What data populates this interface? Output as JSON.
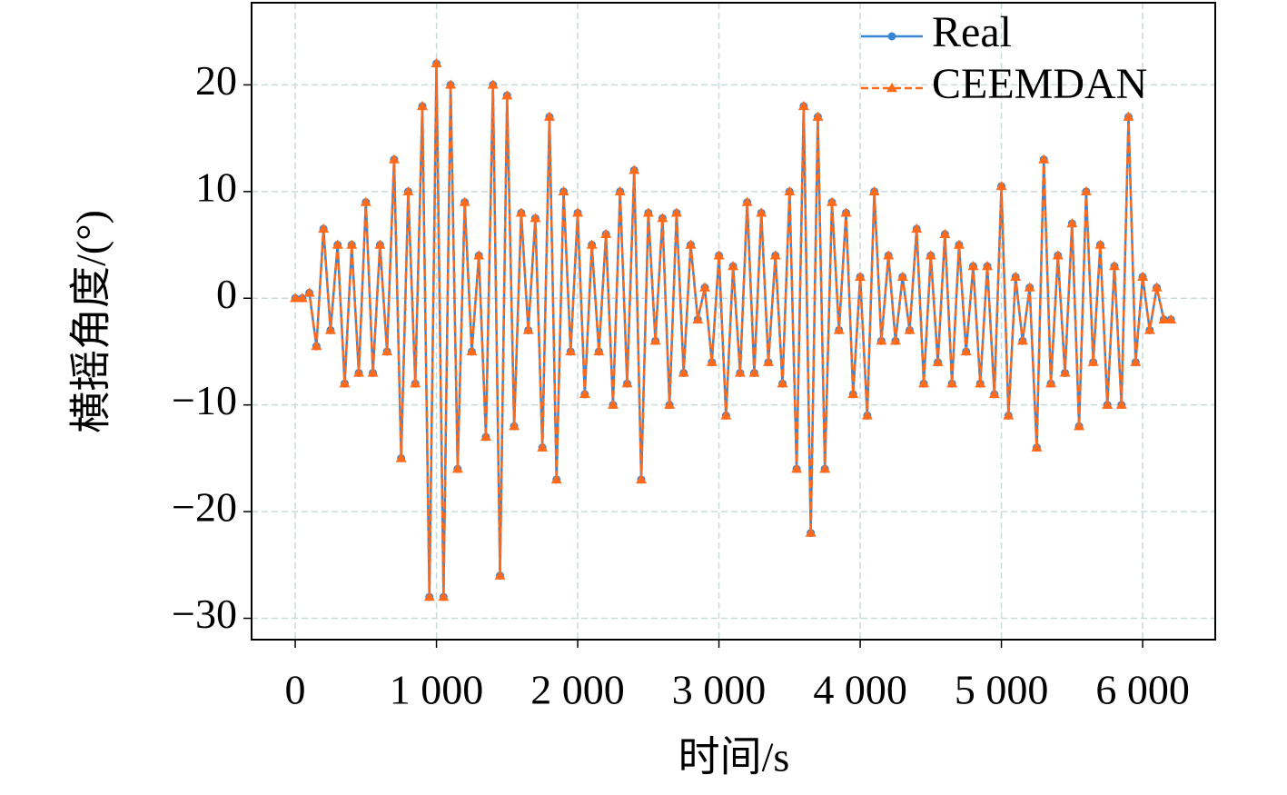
{
  "chart_data": {
    "type": "line",
    "xlabel": "时间/s",
    "ylabel": "横摇角度/(°)",
    "x": [
      0,
      50,
      100,
      150,
      200,
      250,
      300,
      350,
      400,
      450,
      500,
      550,
      600,
      650,
      700,
      750,
      800,
      850,
      900,
      950,
      1000,
      1050,
      1100,
      1150,
      1200,
      1250,
      1300,
      1350,
      1400,
      1450,
      1500,
      1550,
      1600,
      1650,
      1700,
      1750,
      1800,
      1850,
      1900,
      1950,
      2000,
      2050,
      2100,
      2150,
      2200,
      2250,
      2300,
      2350,
      2400,
      2450,
      2500,
      2550,
      2600,
      2650,
      2700,
      2750,
      2800,
      2850,
      2900,
      2950,
      3000,
      3050,
      3100,
      3150,
      3200,
      3250,
      3300,
      3350,
      3400,
      3450,
      3500,
      3550,
      3600,
      3650,
      3700,
      3750,
      3800,
      3850,
      3900,
      3950,
      4000,
      4050,
      4100,
      4150,
      4200,
      4250,
      4300,
      4350,
      4400,
      4450,
      4500,
      4550,
      4600,
      4650,
      4700,
      4750,
      4800,
      4850,
      4900,
      4950,
      5000,
      5050,
      5100,
      5150,
      5200,
      5250,
      5300,
      5350,
      5400,
      5450,
      5500,
      5550,
      5600,
      5650,
      5700,
      5750,
      5800,
      5850,
      5900,
      5950,
      6000,
      6050,
      6100,
      6150,
      6200
    ],
    "series": [
      {
        "name": "Real",
        "color": "#3a86d4",
        "marker": "circle",
        "dash": false,
        "values": [
          0,
          0,
          0.5,
          -4.5,
          6.5,
          -3,
          5,
          -8,
          5,
          -7,
          9,
          -7,
          5,
          -5,
          13,
          -15,
          10,
          -8,
          18,
          -28,
          22,
          -28,
          20,
          -16,
          9,
          -5,
          4,
          -13,
          20,
          -26,
          19,
          -12,
          8,
          -3,
          7.5,
          -14,
          17,
          -17,
          10,
          -5,
          8,
          -9,
          5,
          -5,
          6,
          -10,
          10,
          -8,
          12,
          -17,
          8,
          -4,
          7.5,
          -10,
          8,
          -7,
          5,
          -2,
          1,
          -6,
          4,
          -11,
          3,
          -7,
          9,
          -7,
          8,
          -6,
          4,
          -8,
          10,
          -16,
          18,
          -22,
          17,
          -16,
          9,
          -3,
          8,
          -9,
          2,
          -11,
          10,
          -4,
          4,
          -4,
          2,
          -3,
          6.5,
          -8,
          4,
          -6,
          6,
          -8,
          5,
          -5,
          3,
          -8,
          3,
          -9,
          10.5,
          -11,
          2,
          -4,
          1,
          -14,
          13,
          -8,
          4,
          -7,
          7,
          -12,
          10,
          -6,
          5,
          -10,
          3,
          -10,
          17,
          -6,
          2,
          -3,
          1,
          -2,
          -2
        ]
      },
      {
        "name": "CEEMDAN",
        "color": "#ff6a1a",
        "marker": "triangle",
        "dash": true,
        "values": [
          0,
          0,
          0.5,
          -4.5,
          6.5,
          -3,
          5,
          -8,
          5,
          -7,
          9,
          -7,
          5,
          -5,
          13,
          -15,
          10,
          -8,
          18,
          -28,
          22,
          -28,
          20,
          -16,
          9,
          -5,
          4,
          -13,
          20,
          -26,
          19,
          -12,
          8,
          -3,
          7.5,
          -14,
          17,
          -17,
          10,
          -5,
          8,
          -9,
          5,
          -5,
          6,
          -10,
          10,
          -8,
          12,
          -17,
          8,
          -4,
          7.5,
          -10,
          8,
          -7,
          5,
          -2,
          1,
          -6,
          4,
          -11,
          3,
          -7,
          9,
          -7,
          8,
          -6,
          4,
          -8,
          10,
          -16,
          18,
          -22,
          17,
          -16,
          9,
          -3,
          8,
          -9,
          2,
          -11,
          10,
          -4,
          4,
          -4,
          2,
          -3,
          6.5,
          -8,
          4,
          -6,
          6,
          -8,
          5,
          -5,
          3,
          -8,
          3,
          -9,
          10.5,
          -11,
          2,
          -4,
          1,
          -14,
          13,
          -8,
          4,
          -7,
          7,
          -12,
          10,
          -6,
          5,
          -10,
          3,
          -10,
          17,
          -6,
          2,
          -3,
          1,
          -2,
          -2
        ]
      }
    ],
    "xlim": [
      -309,
      6514
    ],
    "ylim": [
      -32.0,
      27.7
    ],
    "xticks": [
      0,
      {
        "value": 1000,
        "label": "1 000"
      },
      {
        "value": 2000,
        "label": "2 000"
      },
      {
        "value": 3000,
        "label": "3 000"
      },
      {
        "value": 4000,
        "label": "4 000"
      },
      {
        "value": 5000,
        "label": "5 000"
      },
      {
        "value": 6000,
        "label": "6 000"
      }
    ],
    "yticks": [
      {
        "value": -30,
        "label": "−30"
      },
      {
        "value": -20,
        "label": "−20"
      },
      {
        "value": -10,
        "label": "−10"
      },
      0,
      10,
      20
    ],
    "grid": true,
    "legend": "upper right"
  }
}
